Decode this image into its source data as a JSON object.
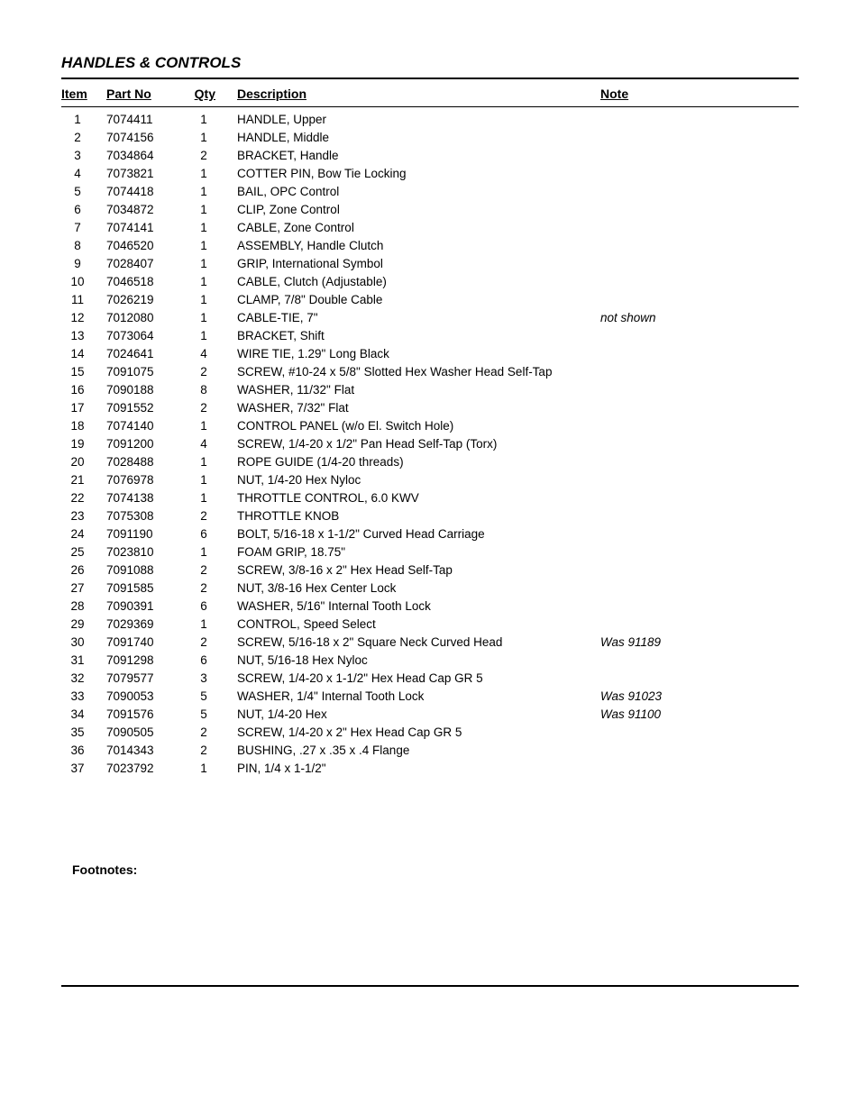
{
  "section_title": "HANDLES & CONTROLS",
  "headers": {
    "item": "Item",
    "partno": "Part No",
    "qty": "Qty",
    "desc": "Description",
    "note": "Note"
  },
  "rows": [
    {
      "item": "1",
      "partno": "7074411",
      "qty": "1",
      "desc": "HANDLE, Upper",
      "note": ""
    },
    {
      "item": "2",
      "partno": "7074156",
      "qty": "1",
      "desc": "HANDLE, Middle",
      "note": ""
    },
    {
      "item": "3",
      "partno": "7034864",
      "qty": "2",
      "desc": "BRACKET, Handle",
      "note": ""
    },
    {
      "item": "4",
      "partno": "7073821",
      "qty": "1",
      "desc": "COTTER PIN, Bow Tie Locking",
      "note": ""
    },
    {
      "item": "5",
      "partno": "7074418",
      "qty": "1",
      "desc": "BAIL, OPC Control",
      "note": ""
    },
    {
      "item": "6",
      "partno": "7034872",
      "qty": "1",
      "desc": "CLIP, Zone Control",
      "note": ""
    },
    {
      "item": "7",
      "partno": "7074141",
      "qty": "1",
      "desc": "CABLE, Zone Control",
      "note": ""
    },
    {
      "item": "8",
      "partno": "7046520",
      "qty": "1",
      "desc": "ASSEMBLY, Handle Clutch",
      "note": ""
    },
    {
      "item": "9",
      "partno": "7028407",
      "qty": "1",
      "desc": "GRIP, International Symbol",
      "note": ""
    },
    {
      "item": "10",
      "partno": "7046518",
      "qty": "1",
      "desc": "CABLE, Clutch (Adjustable)",
      "note": ""
    },
    {
      "item": "11",
      "partno": "7026219",
      "qty": "1",
      "desc": "CLAMP, 7/8\" Double Cable",
      "note": ""
    },
    {
      "item": "12",
      "partno": "7012080",
      "qty": "1",
      "desc": "CABLE-TIE, 7\"",
      "note": "not shown"
    },
    {
      "item": "13",
      "partno": "7073064",
      "qty": "1",
      "desc": "BRACKET, Shift",
      "note": ""
    },
    {
      "item": "14",
      "partno": "7024641",
      "qty": "4",
      "desc": "WIRE TIE, 1.29\" Long Black",
      "note": ""
    },
    {
      "item": "15",
      "partno": "7091075",
      "qty": "2",
      "desc": "SCREW, #10-24 x 5/8\" Slotted Hex Washer Head Self-Tap",
      "note": ""
    },
    {
      "item": "16",
      "partno": "7090188",
      "qty": "8",
      "desc": "WASHER, 11/32\" Flat",
      "note": ""
    },
    {
      "item": "17",
      "partno": "7091552",
      "qty": "2",
      "desc": "WASHER, 7/32\" Flat",
      "note": ""
    },
    {
      "item": "18",
      "partno": "7074140",
      "qty": "1",
      "desc": "CONTROL PANEL (w/o El. Switch Hole)",
      "note": ""
    },
    {
      "item": "19",
      "partno": "7091200",
      "qty": "4",
      "desc": "SCREW, 1/4-20 x 1/2\" Pan Head Self-Tap (Torx)",
      "note": ""
    },
    {
      "item": "20",
      "partno": "7028488",
      "qty": "1",
      "desc": "ROPE GUIDE (1/4-20 threads)",
      "note": ""
    },
    {
      "item": "21",
      "partno": "7076978",
      "qty": "1",
      "desc": "NUT, 1/4-20 Hex Nyloc",
      "note": ""
    },
    {
      "item": "22",
      "partno": "7074138",
      "qty": "1",
      "desc": "THROTTLE CONTROL, 6.0 KWV",
      "note": ""
    },
    {
      "item": "23",
      "partno": "7075308",
      "qty": "2",
      "desc": "THROTTLE KNOB",
      "note": ""
    },
    {
      "item": "24",
      "partno": "7091190",
      "qty": "6",
      "desc": "BOLT, 5/16-18 x 1-1/2\" Curved Head Carriage",
      "note": ""
    },
    {
      "item": "25",
      "partno": "7023810",
      "qty": "1",
      "desc": "FOAM GRIP, 18.75\"",
      "note": ""
    },
    {
      "item": "26",
      "partno": "7091088",
      "qty": "2",
      "desc": "SCREW, 3/8-16 x 2\" Hex Head Self-Tap",
      "note": ""
    },
    {
      "item": "27",
      "partno": "7091585",
      "qty": "2",
      "desc": "NUT, 3/8-16 Hex Center Lock",
      "note": ""
    },
    {
      "item": "28",
      "partno": "7090391",
      "qty": "6",
      "desc": "WASHER, 5/16\" Internal Tooth Lock",
      "note": ""
    },
    {
      "item": "29",
      "partno": "7029369",
      "qty": "1",
      "desc": "CONTROL, Speed Select",
      "note": ""
    },
    {
      "item": "30",
      "partno": "7091740",
      "qty": "2",
      "desc": "SCREW, 5/16-18 x 2\" Square Neck Curved Head",
      "note": "Was 91189"
    },
    {
      "item": "31",
      "partno": "7091298",
      "qty": "6",
      "desc": "NUT, 5/16-18 Hex Nyloc",
      "note": ""
    },
    {
      "item": "32",
      "partno": "7079577",
      "qty": "3",
      "desc": "SCREW, 1/4-20 x 1-1/2\" Hex Head Cap GR 5",
      "note": ""
    },
    {
      "item": "33",
      "partno": "7090053",
      "qty": "5",
      "desc": "WASHER, 1/4\" Internal Tooth Lock",
      "note": "Was 91023"
    },
    {
      "item": "34",
      "partno": "7091576",
      "qty": "5",
      "desc": "NUT, 1/4-20 Hex",
      "note": "Was 91100"
    },
    {
      "item": "35",
      "partno": "7090505",
      "qty": "2",
      "desc": "SCREW, 1/4-20 x 2\" Hex Head Cap GR 5",
      "note": ""
    },
    {
      "item": "36",
      "partno": "7014343",
      "qty": "2",
      "desc": "BUSHING, .27 x .35 x .4 Flange",
      "note": ""
    },
    {
      "item": "37",
      "partno": "7023792",
      "qty": "1",
      "desc": "PIN, 1/4 x 1-1/2\"",
      "note": ""
    }
  ],
  "footnotes_label": "Footnotes:"
}
